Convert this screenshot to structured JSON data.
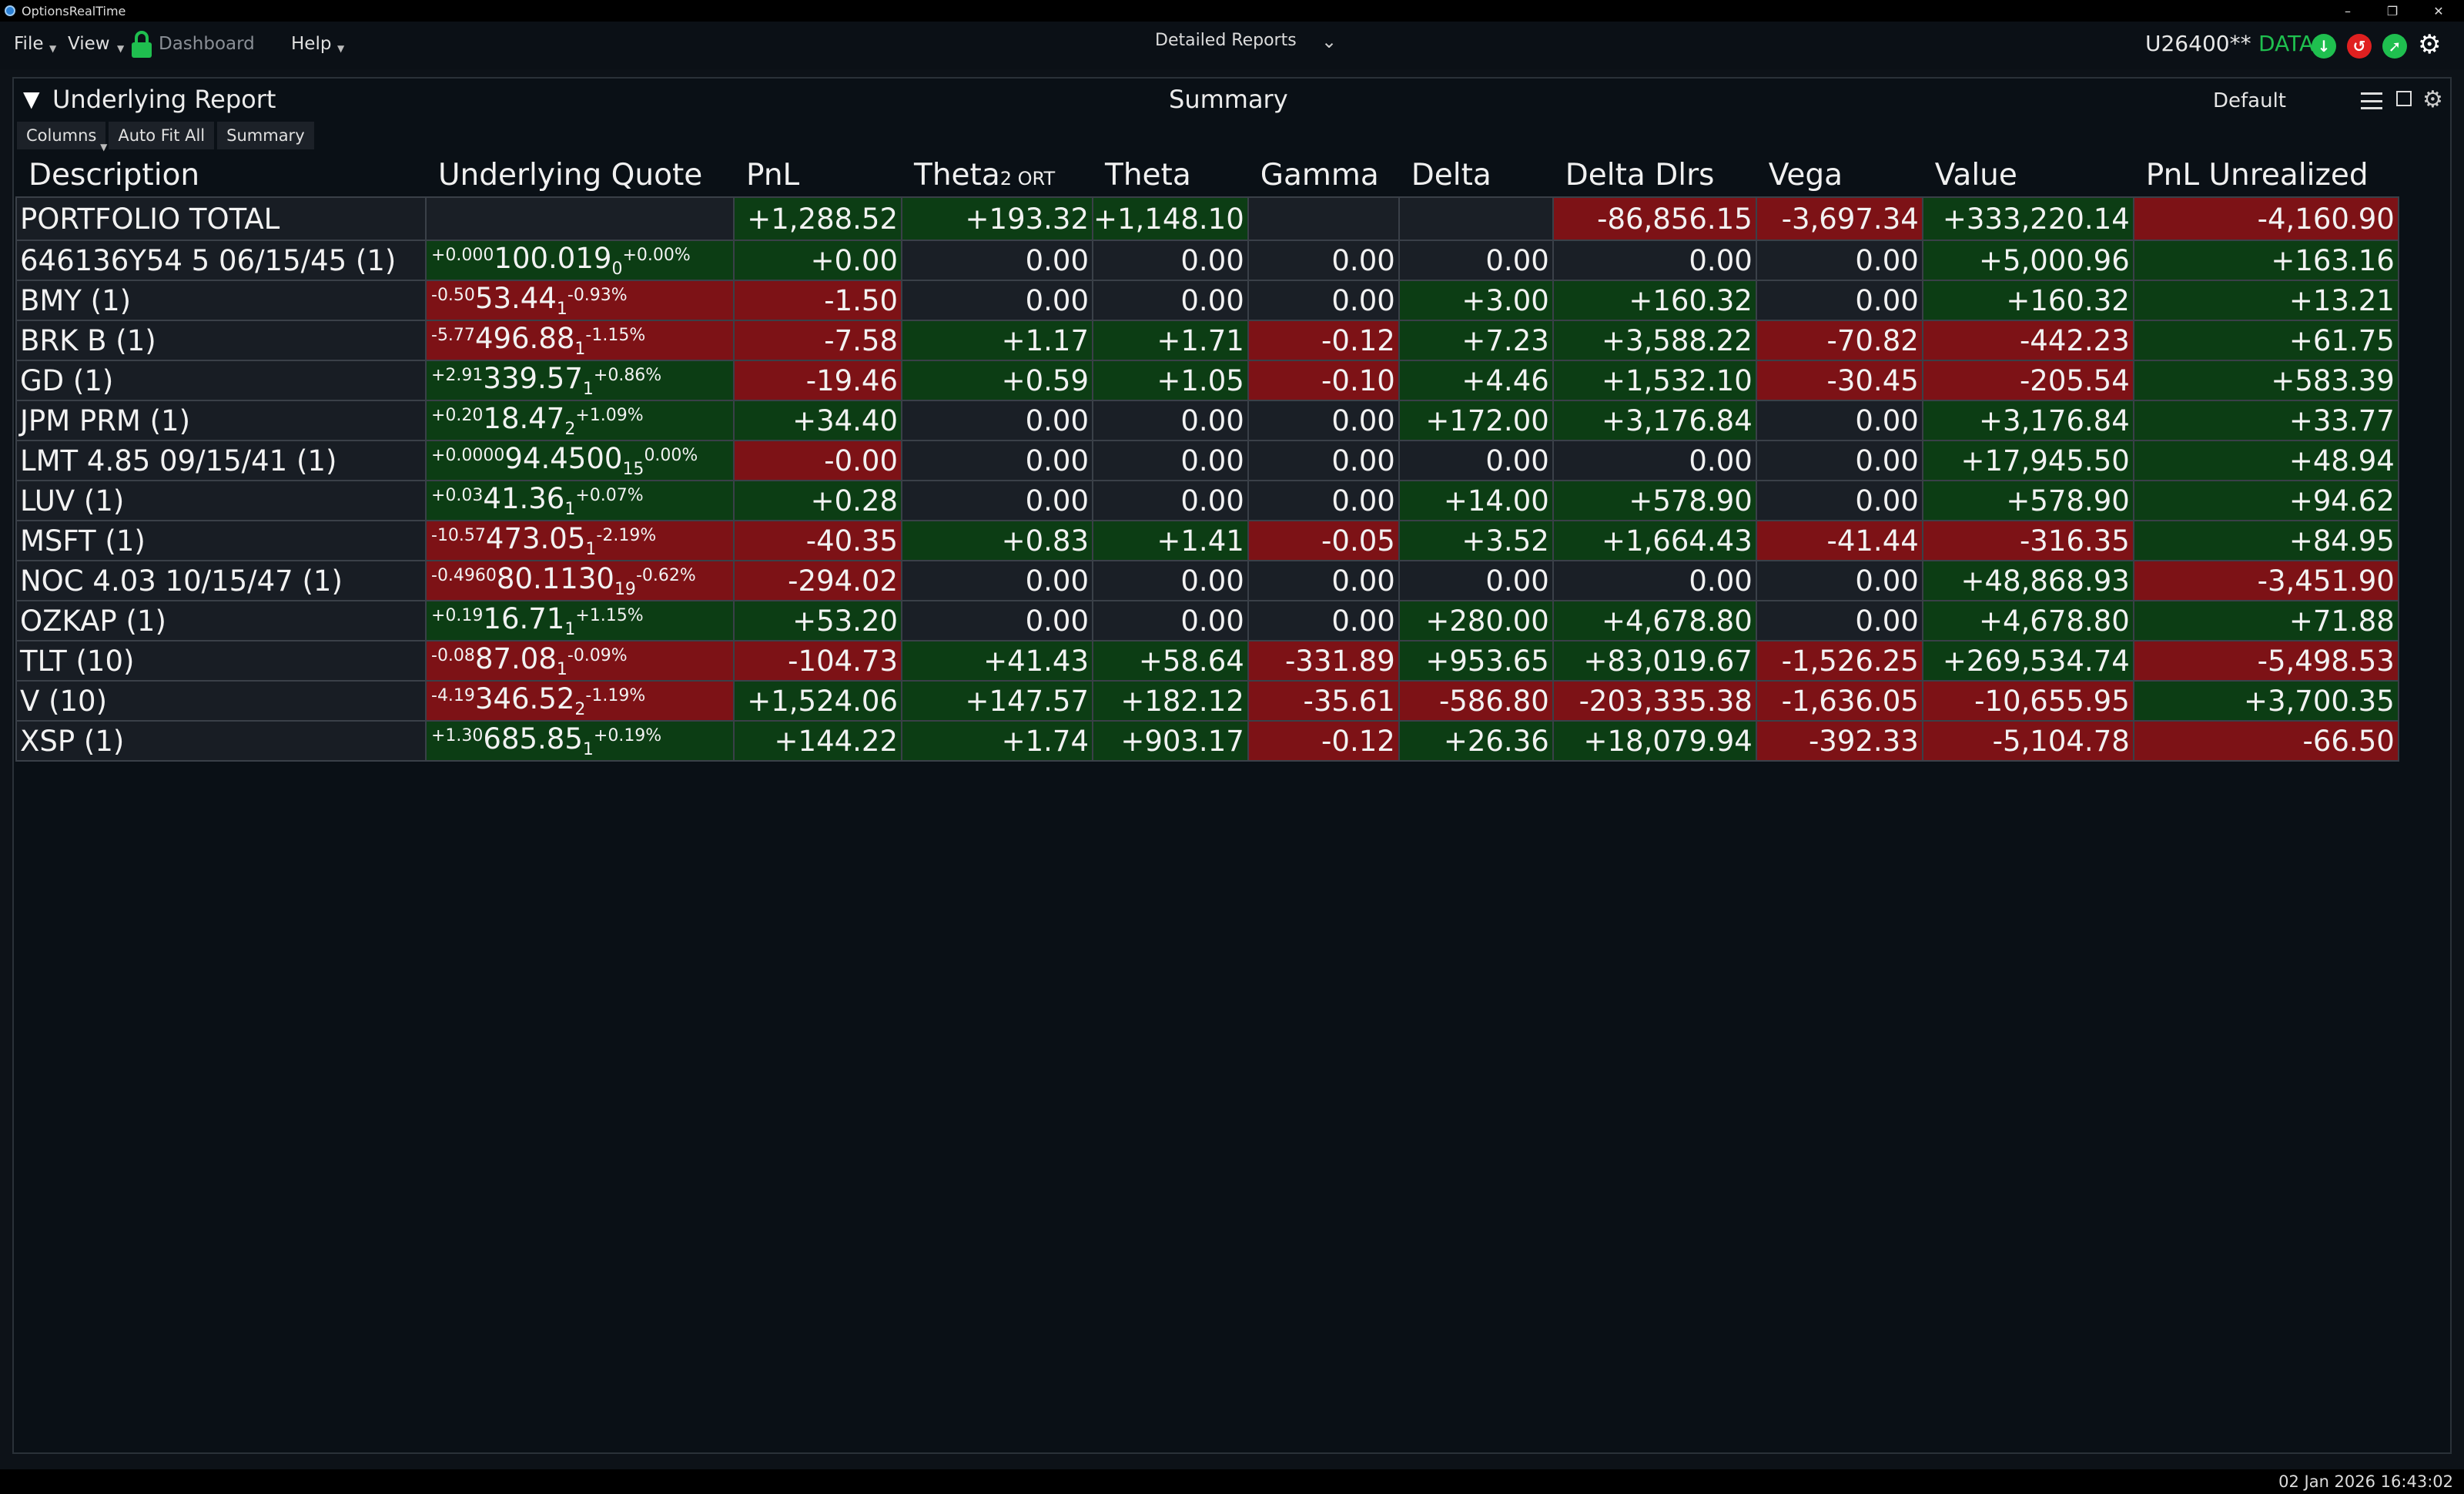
{
  "app": {
    "title": "OptionsRealTime"
  },
  "window_controls": {
    "minimize": "–",
    "restore": "❐",
    "close": "✕"
  },
  "menubar": {
    "file": "File",
    "view": "View",
    "dashboard": "Dashboard",
    "help": "Help",
    "report_selector": "Detailed Reports",
    "account": "U26400**",
    "data_status": "DATA",
    "colors": {
      "green": "#1fbf4f",
      "red": "#e02020"
    }
  },
  "panel": {
    "title": "Underlying Report",
    "view_title": "Summary",
    "layout": "Default",
    "toolbar": {
      "columns": "Columns",
      "autofit": "Auto Fit All",
      "summary": "Summary"
    }
  },
  "table": {
    "headers": {
      "description": "Description",
      "underlying_quote": "Underlying Quote",
      "pnl": "PnL",
      "theta2": "Theta",
      "theta2_sub": "2 ORT",
      "theta": "Theta",
      "gamma": "Gamma",
      "delta": "Delta",
      "delta_dlrs": "Delta Dlrs",
      "vega": "Vega",
      "value": "Value",
      "pnl_unrealized": "PnL Unrealized"
    },
    "total": {
      "description": "PORTFOLIO TOTAL",
      "pnl": "+1,288.52",
      "theta2": "+193.32",
      "theta": "+1,148.10",
      "gamma": "",
      "delta": "",
      "delta_dlrs": "-86,856.15",
      "vega": "-3,697.34",
      "value": "+333,220.14",
      "pnl_unrealized": "-4,160.90"
    },
    "rows": [
      {
        "description": "646136Y54 5 06/15/45 (1)",
        "q_chg": "+0.000",
        "q_price": "100.019",
        "q_size": "0",
        "q_pct": "+0.00%",
        "q_dir": "g",
        "pnl": "+0.00",
        "theta2": "0.00",
        "theta": "0.00",
        "gamma": "0.00",
        "delta": "0.00",
        "delta_dlrs": "0.00",
        "vega": "0.00",
        "value": "+5,000.96",
        "pnl_unrealized": "+163.16"
      },
      {
        "description": "BMY (1)",
        "q_chg": "-0.50",
        "q_price": "53.44",
        "q_size": "1",
        "q_pct": "-0.93%",
        "q_dir": "r",
        "pnl": "-1.50",
        "theta2": "0.00",
        "theta": "0.00",
        "gamma": "0.00",
        "delta": "+3.00",
        "delta_dlrs": "+160.32",
        "vega": "0.00",
        "value": "+160.32",
        "pnl_unrealized": "+13.21"
      },
      {
        "description": "BRK B (1)",
        "q_chg": "-5.77",
        "q_price": "496.88",
        "q_size": "1",
        "q_pct": "-1.15%",
        "q_dir": "r",
        "pnl": "-7.58",
        "theta2": "+1.17",
        "theta": "+1.71",
        "gamma": "-0.12",
        "delta": "+7.23",
        "delta_dlrs": "+3,588.22",
        "vega": "-70.82",
        "value": "-442.23",
        "pnl_unrealized": "+61.75"
      },
      {
        "description": "GD (1)",
        "q_chg": "+2.91",
        "q_price": "339.57",
        "q_size": "1",
        "q_pct": "+0.86%",
        "q_dir": "g",
        "pnl": "-19.46",
        "theta2": "+0.59",
        "theta": "+1.05",
        "gamma": "-0.10",
        "delta": "+4.46",
        "delta_dlrs": "+1,532.10",
        "vega": "-30.45",
        "value": "-205.54",
        "pnl_unrealized": "+583.39"
      },
      {
        "description": "JPM PRM (1)",
        "q_chg": "+0.20",
        "q_price": "18.47",
        "q_size": "2",
        "q_pct": "+1.09%",
        "q_dir": "g",
        "pnl": "+34.40",
        "theta2": "0.00",
        "theta": "0.00",
        "gamma": "0.00",
        "delta": "+172.00",
        "delta_dlrs": "+3,176.84",
        "vega": "0.00",
        "value": "+3,176.84",
        "pnl_unrealized": "+33.77"
      },
      {
        "description": "LMT 4.85 09/15/41 (1)",
        "q_chg": "+0.0000",
        "q_price": "94.4500",
        "q_size": "15",
        "q_pct": "0.00%",
        "q_dir": "g",
        "pnl": "-0.00",
        "theta2": "0.00",
        "theta": "0.00",
        "gamma": "0.00",
        "delta": "0.00",
        "delta_dlrs": "0.00",
        "vega": "0.00",
        "value": "+17,945.50",
        "pnl_unrealized": "+48.94"
      },
      {
        "description": "LUV (1)",
        "q_chg": "+0.03",
        "q_price": "41.36",
        "q_size": "1",
        "q_pct": "+0.07%",
        "q_dir": "g",
        "pnl": "+0.28",
        "theta2": "0.00",
        "theta": "0.00",
        "gamma": "0.00",
        "delta": "+14.00",
        "delta_dlrs": "+578.90",
        "vega": "0.00",
        "value": "+578.90",
        "pnl_unrealized": "+94.62"
      },
      {
        "description": "MSFT (1)",
        "q_chg": "-10.57",
        "q_price": "473.05",
        "q_size": "1",
        "q_pct": "-2.19%",
        "q_dir": "r",
        "pnl": "-40.35",
        "theta2": "+0.83",
        "theta": "+1.41",
        "gamma": "-0.05",
        "delta": "+3.52",
        "delta_dlrs": "+1,664.43",
        "vega": "-41.44",
        "value": "-316.35",
        "pnl_unrealized": "+84.95"
      },
      {
        "description": "NOC 4.03 10/15/47 (1)",
        "q_chg": "-0.4960",
        "q_price": "80.1130",
        "q_size": "19",
        "q_pct": "-0.62%",
        "q_dir": "r",
        "pnl": "-294.02",
        "theta2": "0.00",
        "theta": "0.00",
        "gamma": "0.00",
        "delta": "0.00",
        "delta_dlrs": "0.00",
        "vega": "0.00",
        "value": "+48,868.93",
        "pnl_unrealized": "-3,451.90"
      },
      {
        "description": "OZKAP (1)",
        "q_chg": "+0.19",
        "q_price": "16.71",
        "q_size": "1",
        "q_pct": "+1.15%",
        "q_dir": "g",
        "pnl": "+53.20",
        "theta2": "0.00",
        "theta": "0.00",
        "gamma": "0.00",
        "delta": "+280.00",
        "delta_dlrs": "+4,678.80",
        "vega": "0.00",
        "value": "+4,678.80",
        "pnl_unrealized": "+71.88"
      },
      {
        "description": "TLT (10)",
        "q_chg": "-0.08",
        "q_price": "87.08",
        "q_size": "1",
        "q_pct": "-0.09%",
        "q_dir": "r",
        "pnl": "-104.73",
        "theta2": "+41.43",
        "theta": "+58.64",
        "gamma": "-331.89",
        "delta": "+953.65",
        "delta_dlrs": "+83,019.67",
        "vega": "-1,526.25",
        "value": "+269,534.74",
        "pnl_unrealized": "-5,498.53"
      },
      {
        "description": "V (10)",
        "q_chg": "-4.19",
        "q_price": "346.52",
        "q_size": "2",
        "q_pct": "-1.19%",
        "q_dir": "r",
        "pnl": "+1,524.06",
        "theta2": "+147.57",
        "theta": "+182.12",
        "gamma": "-35.61",
        "delta": "-586.80",
        "delta_dlrs": "-203,335.38",
        "vega": "-1,636.05",
        "value": "-10,655.95",
        "pnl_unrealized": "+3,700.35"
      },
      {
        "description": "XSP (1)",
        "q_chg": "+1.30",
        "q_price": "685.85",
        "q_size": "1",
        "q_pct": "+0.19%",
        "q_dir": "g",
        "pnl": "+144.22",
        "theta2": "+1.74",
        "theta": "+903.17",
        "gamma": "-0.12",
        "delta": "+26.36",
        "delta_dlrs": "+18,079.94",
        "vega": "-392.33",
        "value": "-5,104.78",
        "pnl_unrealized": "-66.50"
      }
    ]
  },
  "status": {
    "clock": "02 Jan 2026 16:43:02"
  }
}
